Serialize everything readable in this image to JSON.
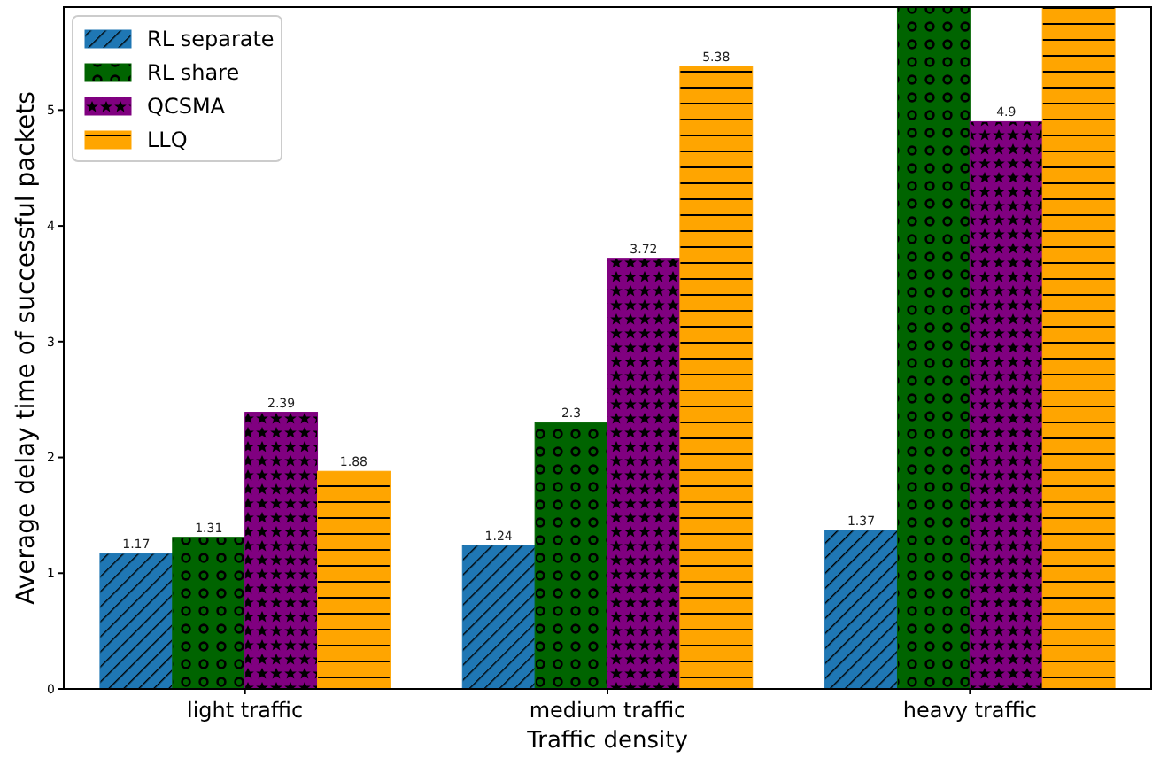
{
  "chart_data": {
    "type": "bar",
    "xlabel": "Traffic density",
    "ylabel": "Average delay time of successful packets",
    "categories": [
      "light traffic",
      "medium traffic",
      "heavy traffic"
    ],
    "series": [
      {
        "name": "RL separate",
        "color": "#1f77b4",
        "values": [
          1.17,
          1.24,
          1.37
        ],
        "value_labels": [
          "1.17",
          "1.24",
          "1.37"
        ]
      },
      {
        "name": "RL share",
        "color": "#006400",
        "values": [
          1.31,
          2.3,
          5.89
        ],
        "value_labels": [
          "1.31",
          "2.3",
          null
        ]
      },
      {
        "name": "QCSMA",
        "color": "#800080",
        "values": [
          2.39,
          3.72,
          4.9
        ],
        "value_labels": [
          "2.39",
          "3.72",
          "4.9"
        ]
      },
      {
        "name": "LLQ",
        "color": "#ffa500",
        "values": [
          1.88,
          5.38,
          5.89
        ],
        "value_labels": [
          "1.88",
          "5.38",
          null
        ]
      }
    ],
    "ylim": [
      0,
      5.89
    ],
    "yticks": [
      0,
      1,
      2,
      3,
      4,
      5
    ],
    "legend": "top left"
  }
}
